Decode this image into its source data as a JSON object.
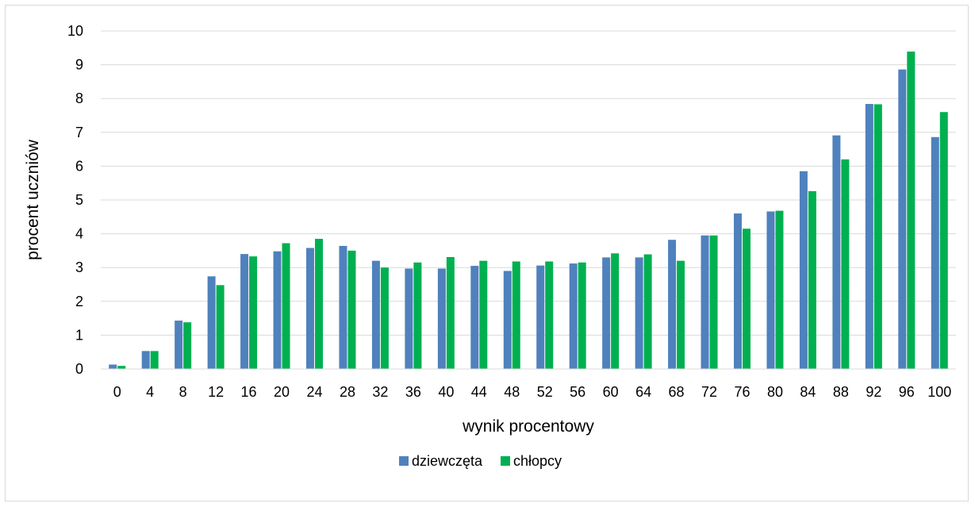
{
  "chart_data": {
    "type": "bar",
    "title": "",
    "xlabel": "wynik procentowy",
    "ylabel": "procent uczniów",
    "ylim": [
      0,
      10
    ],
    "yticks": [
      "0",
      "1",
      "2",
      "3",
      "4",
      "5",
      "6",
      "7",
      "8",
      "9",
      "10"
    ],
    "grid": true,
    "legend_position": "bottom",
    "categories": [
      "0",
      "4",
      "8",
      "12",
      "16",
      "20",
      "24",
      "28",
      "32",
      "36",
      "40",
      "44",
      "48",
      "52",
      "56",
      "60",
      "64",
      "68",
      "72",
      "76",
      "80",
      "84",
      "88",
      "92",
      "96",
      "100"
    ],
    "series": [
      {
        "name": "dziewczęta",
        "color": "#4f81bd",
        "values": [
          0.13,
          0.53,
          1.43,
          2.74,
          3.4,
          3.48,
          3.58,
          3.64,
          3.2,
          2.97,
          2.97,
          3.05,
          2.9,
          3.06,
          3.12,
          3.3,
          3.3,
          3.82,
          3.95,
          4.6,
          4.66,
          5.85,
          6.91,
          7.84,
          8.86,
          6.86
        ]
      },
      {
        "name": "chłopcy",
        "color": "#00b050",
        "values": [
          0.09,
          0.53,
          1.38,
          2.48,
          3.33,
          3.72,
          3.85,
          3.5,
          3.0,
          3.15,
          3.31,
          3.2,
          3.18,
          3.18,
          3.15,
          3.42,
          3.39,
          3.2,
          3.95,
          4.15,
          4.68,
          5.26,
          6.2,
          7.83,
          9.39,
          7.6
        ]
      }
    ]
  }
}
